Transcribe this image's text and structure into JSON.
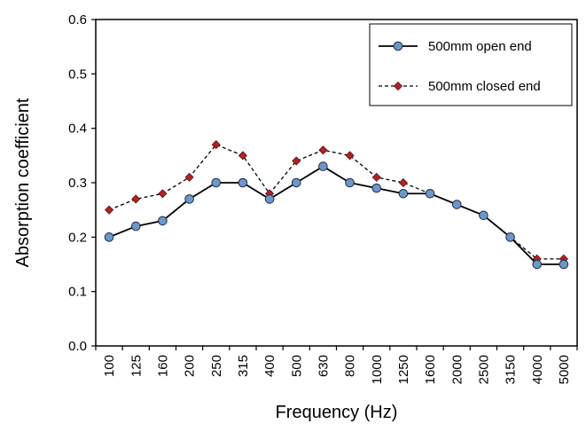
{
  "chart_data": {
    "type": "line",
    "xlabel": "Frequency (Hz)",
    "ylabel": "Absorption coefficient",
    "categories": [
      "100",
      "125",
      "160",
      "200",
      "250",
      "315",
      "400",
      "500",
      "630",
      "800",
      "1000",
      "1250",
      "1600",
      "2000",
      "2500",
      "3150",
      "4000",
      "5000"
    ],
    "ylim": [
      0.0,
      0.6
    ],
    "yticks": [
      "0.0",
      "0.1",
      "0.2",
      "0.3",
      "0.4",
      "0.5",
      "0.6"
    ],
    "grid": false,
    "legend_position": "top-right",
    "series": [
      {
        "name": "500mm open end",
        "values": [
          0.2,
          0.22,
          0.23,
          0.27,
          0.3,
          0.3,
          0.27,
          0.3,
          0.33,
          0.3,
          0.29,
          0.28,
          0.28,
          0.26,
          0.24,
          0.2,
          0.15,
          0.15
        ],
        "line_color": "#000000",
        "marker_color": "#6d97c9",
        "line_style": "solid",
        "marker": "circle"
      },
      {
        "name": "500mm closed end",
        "values": [
          0.25,
          0.27,
          0.28,
          0.31,
          0.37,
          0.35,
          0.28,
          0.34,
          0.36,
          0.35,
          0.31,
          0.3,
          0.28,
          0.26,
          0.24,
          0.2,
          0.16,
          0.16
        ],
        "line_color": "#000000",
        "marker_color": "#b22222",
        "line_style": "dashed",
        "marker": "diamond"
      }
    ]
  }
}
